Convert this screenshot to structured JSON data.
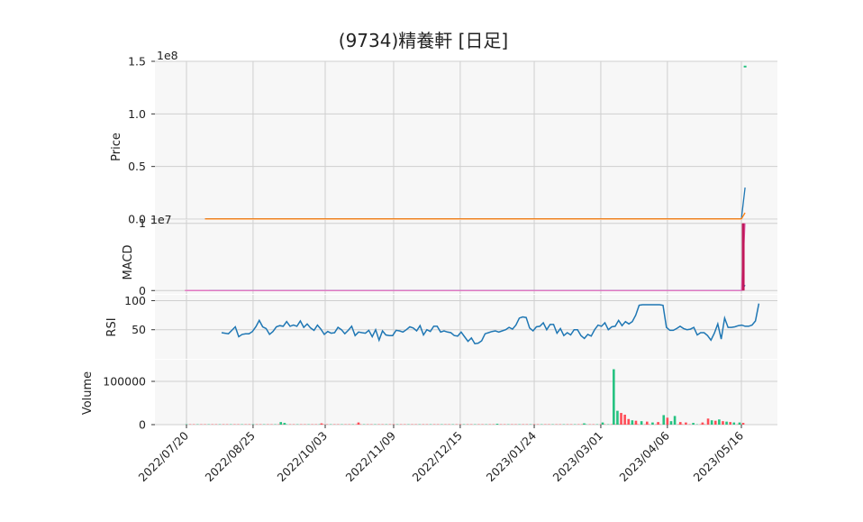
{
  "title": "(9734)精養軒 [日足]",
  "colors": {
    "panel_bg": "#f7f7f7",
    "grid": "#cfcfcf",
    "line_blue": "#1f77b4",
    "line_orange": "#ff7f0e",
    "macd_signal": "#e377c2",
    "macd_hist": "#c2185b",
    "vol_up": "#26c281",
    "vol_down": "#ff4d57"
  },
  "chart_data": [
    {
      "type": "line",
      "panel": "price",
      "ylabel": "Price",
      "scale_label": "1e8",
      "yticks": [
        "0.0",
        "0.5",
        "1.0",
        "1.5"
      ],
      "ylim": [
        0,
        1.5
      ],
      "series": [
        {
          "values": [
            0.002,
            0.002,
            0.002,
            0.002,
            0.002,
            0.002,
            0.002,
            0.002,
            0.002,
            0.002,
            0.002,
            0.002,
            0.002,
            0.3
          ]
        },
        {
          "values": [
            0.002,
            0.002,
            0.002,
            0.002,
            0.002,
            0.002,
            0.002,
            0.002,
            0.002,
            0.002,
            0.002,
            0.002,
            0.002,
            0.06
          ]
        }
      ],
      "marker": {
        "x": "2023/05/18",
        "y": 1.45
      }
    },
    {
      "type": "line",
      "panel": "macd",
      "ylabel": "MACD",
      "scale_label": "1e7",
      "yticks": [
        "0",
        "1"
      ],
      "ylim": [
        -0.05,
        1.05
      ],
      "series": [
        {
          "values": [
            0,
            0,
            0,
            0,
            0,
            0,
            0,
            0,
            0,
            0,
            0,
            0,
            0,
            0.08
          ]
        },
        {
          "values": [
            0,
            0,
            0,
            0,
            0,
            0,
            0,
            0,
            0,
            0,
            0,
            0,
            0,
            1.0
          ]
        }
      ]
    },
    {
      "type": "line",
      "panel": "rsi",
      "ylabel": "RSI",
      "yticks": [
        "50",
        "100"
      ],
      "ylim": [
        0,
        110
      ],
      "x_start": "2022/08/08",
      "values": [
        45,
        44,
        43,
        49,
        55,
        38,
        42,
        43,
        43,
        47,
        55,
        66,
        55,
        52,
        42,
        47,
        55,
        57,
        56,
        64,
        56,
        58,
        56,
        65,
        54,
        60,
        53,
        49,
        58,
        51,
        42,
        47,
        44,
        45,
        54,
        50,
        43,
        49,
        56,
        40,
        46,
        45,
        44,
        49,
        38,
        50,
        32,
        48,
        41,
        40,
        40,
        49,
        48,
        46,
        50,
        55,
        53,
        48,
        57,
        41,
        50,
        47,
        56,
        56,
        46,
        48,
        46,
        45,
        40,
        39,
        46,
        38,
        30,
        36,
        26,
        27,
        31,
        43,
        45,
        47,
        48,
        46,
        48,
        50,
        54,
        51,
        58,
        70,
        72,
        71,
        53,
        48,
        55,
        56,
        62,
        50,
        59,
        59,
        44,
        52,
        40,
        45,
        41,
        50,
        50,
        40,
        35,
        42,
        39,
        50,
        58,
        56,
        62,
        50,
        55,
        56,
        66,
        57,
        64,
        60,
        64,
        75,
        92,
        93,
        93,
        93,
        93,
        93,
        93,
        92,
        54,
        49,
        49,
        52,
        56,
        52,
        50,
        51,
        54,
        41,
        45,
        45,
        40,
        32,
        44,
        60,
        34,
        70,
        54,
        54,
        55,
        57,
        58,
        56,
        56,
        58,
        65,
        95
      ]
    },
    {
      "type": "bar",
      "panel": "volume",
      "ylabel": "Volume",
      "yticks": [
        "0",
        "100000"
      ],
      "ylim": [
        0,
        150000
      ],
      "spikes": [
        {
          "x": "2022/09/09",
          "value": 6000,
          "up": true
        },
        {
          "x": "2022/09/11",
          "value": 4000,
          "up": true
        },
        {
          "x": "2022/10/01",
          "value": 3000,
          "up": false
        },
        {
          "x": "2022/10/21",
          "value": 5000,
          "up": false
        },
        {
          "x": "2023/01/04",
          "value": 2000,
          "up": true
        },
        {
          "x": "2023/02/20",
          "value": 3000,
          "up": true
        },
        {
          "x": "2023/03/02",
          "value": 5000,
          "up": true
        },
        {
          "x": "2023/03/08",
          "value": 128000,
          "up": true
        },
        {
          "x": "2023/03/10",
          "value": 32000,
          "up": true
        },
        {
          "x": "2023/03/12",
          "value": 27000,
          "up": false
        },
        {
          "x": "2023/03/14",
          "value": 23000,
          "up": false
        },
        {
          "x": "2023/03/16",
          "value": 13000,
          "up": false
        },
        {
          "x": "2023/03/18",
          "value": 10000,
          "up": true
        },
        {
          "x": "2023/03/20",
          "value": 9000,
          "up": false
        },
        {
          "x": "2023/03/23",
          "value": 8000,
          "up": true
        },
        {
          "x": "2023/03/26",
          "value": 7000,
          "up": false
        },
        {
          "x": "2023/03/29",
          "value": 5000,
          "up": true
        },
        {
          "x": "2023/04/01",
          "value": 6000,
          "up": false
        },
        {
          "x": "2023/04/04",
          "value": 22000,
          "up": true
        },
        {
          "x": "2023/04/06",
          "value": 16000,
          "up": false
        },
        {
          "x": "2023/04/08",
          "value": 8000,
          "up": true
        },
        {
          "x": "2023/04/10",
          "value": 20000,
          "up": true
        },
        {
          "x": "2023/04/13",
          "value": 6000,
          "up": false
        },
        {
          "x": "2023/04/16",
          "value": 5000,
          "up": false
        },
        {
          "x": "2023/04/20",
          "value": 4000,
          "up": true
        },
        {
          "x": "2023/04/25",
          "value": 5000,
          "up": false
        },
        {
          "x": "2023/04/28",
          "value": 14000,
          "up": false
        },
        {
          "x": "2023/04/30",
          "value": 10000,
          "up": true
        },
        {
          "x": "2023/05/02",
          "value": 9000,
          "up": false
        },
        {
          "x": "2023/05/04",
          "value": 12000,
          "up": true
        },
        {
          "x": "2023/05/06",
          "value": 8000,
          "up": false
        },
        {
          "x": "2023/05/08",
          "value": 7000,
          "up": true
        },
        {
          "x": "2023/05/10",
          "value": 6000,
          "up": false
        },
        {
          "x": "2023/05/12",
          "value": 5000,
          "up": true
        },
        {
          "x": "2023/05/15",
          "value": 5000,
          "up": true
        },
        {
          "x": "2023/05/17",
          "value": 4000,
          "up": false
        }
      ]
    }
  ],
  "xticks": [
    "2022/07/20",
    "2022/08/25",
    "2022/10/03",
    "2022/11/09",
    "2022/12/15",
    "2023/01/24",
    "2023/03/01",
    "2023/04/06",
    "2023/05/16"
  ]
}
